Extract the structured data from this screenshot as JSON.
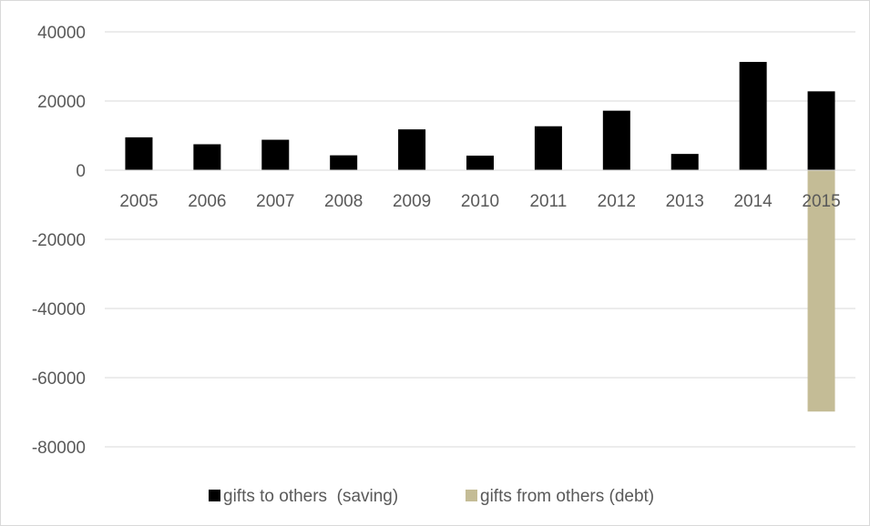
{
  "chart_data": {
    "type": "bar",
    "title": "",
    "xlabel": "",
    "ylabel": "",
    "categories": [
      "2005",
      "2006",
      "2007",
      "2008",
      "2009",
      "2010",
      "2011",
      "2012",
      "2013",
      "2014",
      "2015"
    ],
    "series": [
      {
        "name": "gifts to others  (saving)",
        "color": "#000000",
        "values": [
          9500,
          7500,
          8800,
          4300,
          11800,
          4200,
          12700,
          17200,
          4700,
          31300,
          22800
        ]
      },
      {
        "name": "gifts from others (debt)",
        "color": "#c4bc96",
        "values": [
          0,
          0,
          0,
          0,
          0,
          0,
          0,
          0,
          0,
          0,
          -69800
        ]
      }
    ],
    "ylim": [
      -80000,
      40000
    ],
    "yticks": [
      40000,
      20000,
      0,
      -20000,
      -40000,
      -60000,
      -80000
    ],
    "grid": true,
    "gridline_color": "#d9d9d9",
    "legend_position": "bottom"
  }
}
